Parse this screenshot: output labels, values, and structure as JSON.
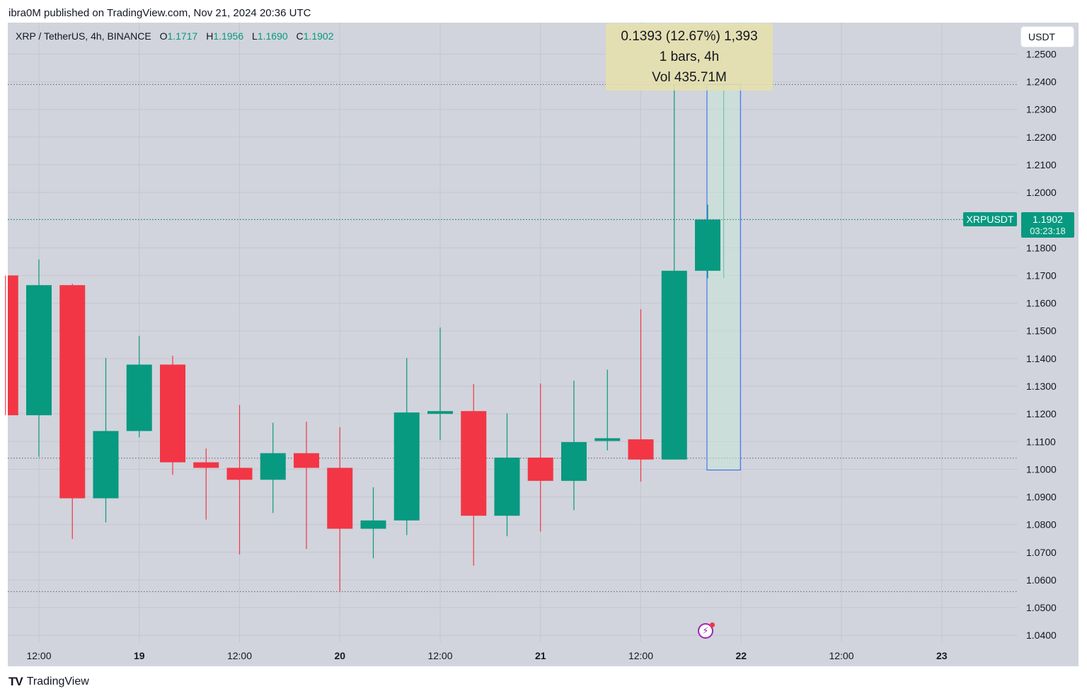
{
  "header": {
    "publisher_text": "ibra0M published on TradingView.com, Nov 21, 2024 20:36 UTC"
  },
  "legend": {
    "symbol": "XRP / TetherUS, 4h, BINANCE",
    "o_label": "O",
    "o_value": "1.1717",
    "h_label": "H",
    "h_value": "1.1956",
    "l_label": "L",
    "l_value": "1.1690",
    "c_label": "C",
    "c_value": "1.1902"
  },
  "currency_button": "USDT",
  "measure": {
    "line1": "0.1393 (12.67%) 1,393",
    "line2": "1 bars, 4h",
    "line3": "Vol 435.71M"
  },
  "last_price": {
    "symbol": "XRPUSDT",
    "price": "1.1902",
    "countdown": "03:23:18"
  },
  "brand": {
    "name": "TradingView",
    "logo_text": "TV"
  },
  "icons": {
    "alert": "lightning-icon",
    "logo": "tradingview-logo-icon"
  },
  "colors": {
    "up": "#089981",
    "down": "#f23645",
    "grid": "#c3c6cf",
    "bg": "#d1d4dc"
  },
  "chart_data": {
    "type": "candlestick",
    "title": "XRP / TetherUS, 4h, BINANCE",
    "ylim": [
      1.035,
      1.2525
    ],
    "y_ticks": [
      "1.2500",
      "1.2400",
      "1.2300",
      "1.2200",
      "1.2100",
      "1.2000",
      "1.1800",
      "1.1700",
      "1.1600",
      "1.1500",
      "1.1400",
      "1.1300",
      "1.1200",
      "1.1100",
      "1.1000",
      "1.0900",
      "1.0800",
      "1.0700",
      "1.0600",
      "1.0500",
      "1.0400"
    ],
    "x_ticks": [
      {
        "label": "12:00",
        "index": 0,
        "bold": false
      },
      {
        "label": "19",
        "index": 3,
        "bold": true
      },
      {
        "label": "12:00",
        "index": 6,
        "bold": false
      },
      {
        "label": "20",
        "index": 9,
        "bold": true
      },
      {
        "label": "12:00",
        "index": 12,
        "bold": false
      },
      {
        "label": "21",
        "index": 15,
        "bold": true
      },
      {
        "label": "12:00",
        "index": 18,
        "bold": false
      },
      {
        "label": "22",
        "index": 21,
        "bold": true
      },
      {
        "label": "12:00",
        "index": 24,
        "bold": false
      },
      {
        "label": "23",
        "index": 27,
        "bold": true
      }
    ],
    "dotted_levels": [
      1.239,
      1.1902,
      1.104,
      1.0558
    ],
    "candles": [
      {
        "i": -1,
        "o": 1.17,
        "h": 1.17,
        "l": 1.1195,
        "c": 1.1195
      },
      {
        "i": 0,
        "o": 1.1195,
        "h": 1.1758,
        "l": 1.1045,
        "c": 1.1665
      },
      {
        "i": 1,
        "o": 1.1665,
        "h": 1.167,
        "l": 1.0748,
        "c": 1.0895
      },
      {
        "i": 2,
        "o": 1.0895,
        "h": 1.1402,
        "l": 1.0808,
        "c": 1.1138
      },
      {
        "i": 3,
        "o": 1.1138,
        "h": 1.1482,
        "l": 1.1115,
        "c": 1.1378
      },
      {
        "i": 4,
        "o": 1.1378,
        "h": 1.141,
        "l": 1.098,
        "c": 1.1025
      },
      {
        "i": 5,
        "o": 1.1025,
        "h": 1.1075,
        "l": 1.0818,
        "c": 1.1005
      },
      {
        "i": 6,
        "o": 1.1005,
        "h": 1.1232,
        "l": 1.0692,
        "c": 1.0962
      },
      {
        "i": 7,
        "o": 1.0962,
        "h": 1.1168,
        "l": 1.0842,
        "c": 1.1058
      },
      {
        "i": 8,
        "o": 1.1058,
        "h": 1.1172,
        "l": 1.0712,
        "c": 1.1005
      },
      {
        "i": 9,
        "o": 1.1005,
        "h": 1.1152,
        "l": 1.0558,
        "c": 1.0785
      },
      {
        "i": 10,
        "o": 1.0785,
        "h": 1.0935,
        "l": 1.0678,
        "c": 1.0815
      },
      {
        "i": 11,
        "o": 1.0815,
        "h": 1.1402,
        "l": 1.0762,
        "c": 1.1205
      },
      {
        "i": 12,
        "o": 1.12,
        "h": 1.1512,
        "l": 1.1105,
        "c": 1.121
      },
      {
        "i": 13,
        "o": 1.121,
        "h": 1.1308,
        "l": 1.0652,
        "c": 1.0832
      },
      {
        "i": 14,
        "o": 1.0832,
        "h": 1.1202,
        "l": 1.0758,
        "c": 1.1042
      },
      {
        "i": 15,
        "o": 1.1042,
        "h": 1.131,
        "l": 1.0775,
        "c": 1.0958
      },
      {
        "i": 16,
        "o": 1.0958,
        "h": 1.132,
        "l": 1.0852,
        "c": 1.1098
      },
      {
        "i": 17,
        "o": 1.1102,
        "h": 1.136,
        "l": 1.1068,
        "c": 1.1112
      },
      {
        "i": 18,
        "o": 1.1108,
        "h": 1.1578,
        "l": 1.0955,
        "c": 1.1035
      },
      {
        "i": 19,
        "o": 1.1035,
        "h": 1.239,
        "l": 1.1035,
        "c": 1.1717
      },
      {
        "i": 20,
        "o": 1.1717,
        "h": 1.1956,
        "l": 1.169,
        "c": 1.1902
      }
    ],
    "measure_range": {
      "from": 1.0997,
      "to": 1.239,
      "x_start_index": 20,
      "x_end_index": 21
    }
  }
}
